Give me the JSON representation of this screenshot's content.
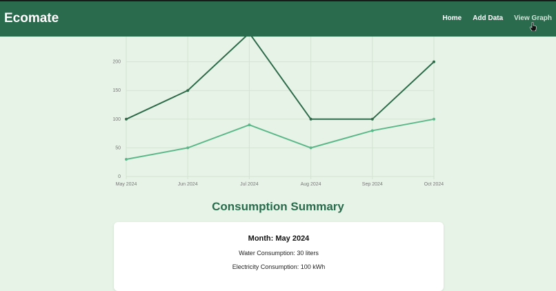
{
  "header": {
    "logo": "Ecomate",
    "nav": [
      {
        "label": "Home"
      },
      {
        "label": "Add Data"
      },
      {
        "label": "View Graph",
        "active": true
      }
    ]
  },
  "chart_data": {
    "type": "line",
    "categories": [
      "May 2024",
      "Jun 2024",
      "Jul 2024",
      "Aug 2024",
      "Sep 2024",
      "Oct 2024"
    ],
    "series": [
      {
        "values": [
          100,
          150,
          250,
          100,
          100,
          200
        ],
        "color": "#2e6b4a"
      },
      {
        "values": [
          30,
          50,
          90,
          50,
          80,
          100
        ],
        "color": "#5cb88a"
      }
    ],
    "yticks": [
      0,
      50,
      100,
      150,
      200
    ],
    "ylim": [
      0,
      250
    ],
    "grid": true
  },
  "summary": {
    "title": "Consumption Summary",
    "month": "Month: May 2024",
    "water": "Water Consumption: 30 liters",
    "electricity": "Electricity Consumption: 100 kWh"
  },
  "colors": {
    "header": "#2a6b4e",
    "background": "#e6f3e6"
  }
}
